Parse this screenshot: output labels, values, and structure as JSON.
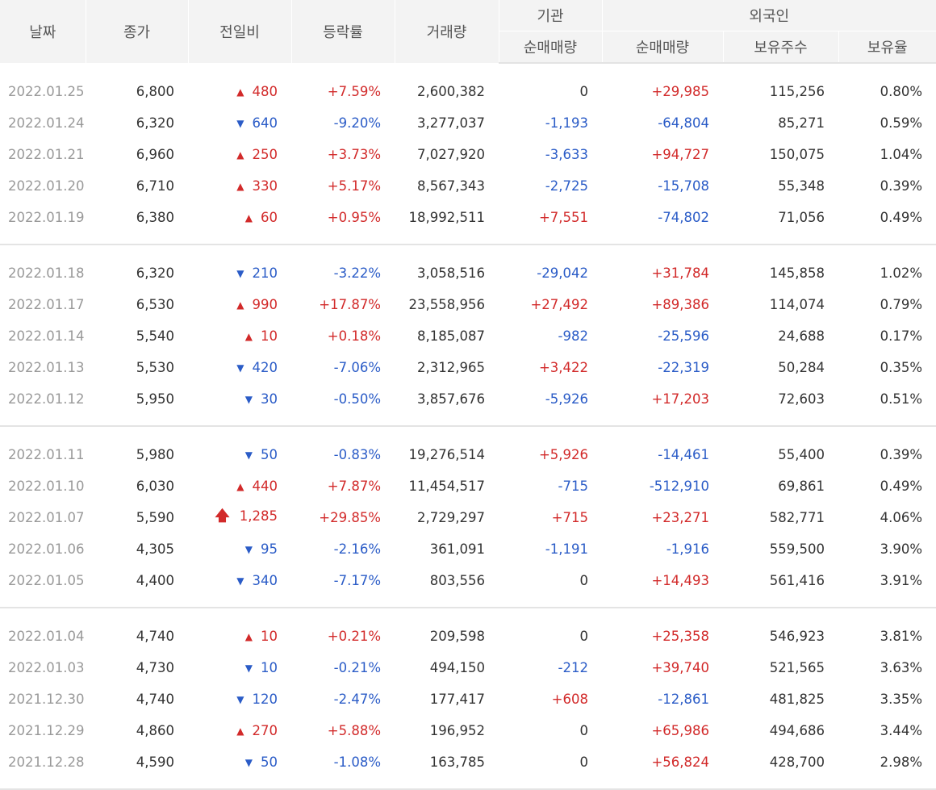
{
  "header": {
    "date": "날짜",
    "close": "종가",
    "change": "전일비",
    "rate": "등락률",
    "volume": "거래량",
    "institution_group": "기관",
    "institution_net": "순매매량",
    "foreign_group": "외국인",
    "foreign_net": "순매매량",
    "foreign_holdings": "보유주수",
    "foreign_ratio": "보유율"
  },
  "colors": {
    "up": "#d22a2a",
    "down": "#2b5cc7",
    "date": "#999999",
    "header_bg": "#f3f3f3"
  },
  "groups": [
    {
      "rows": [
        {
          "date": "2022.01.25",
          "close": "6,800",
          "dir": "up",
          "change": "480",
          "rate": "+7.59%",
          "volume": "2,600,382",
          "inst": "0",
          "foreign": "+29,985",
          "holdings": "115,256",
          "ratio": "0.80%"
        },
        {
          "date": "2022.01.24",
          "close": "6,320",
          "dir": "down",
          "change": "640",
          "rate": "-9.20%",
          "volume": "3,277,037",
          "inst": "-1,193",
          "foreign": "-64,804",
          "holdings": "85,271",
          "ratio": "0.59%"
        },
        {
          "date": "2022.01.21",
          "close": "6,960",
          "dir": "up",
          "change": "250",
          "rate": "+3.73%",
          "volume": "7,027,920",
          "inst": "-3,633",
          "foreign": "+94,727",
          "holdings": "150,075",
          "ratio": "1.04%"
        },
        {
          "date": "2022.01.20",
          "close": "6,710",
          "dir": "up",
          "change": "330",
          "rate": "+5.17%",
          "volume": "8,567,343",
          "inst": "-2,725",
          "foreign": "-15,708",
          "holdings": "55,348",
          "ratio": "0.39%"
        },
        {
          "date": "2022.01.19",
          "close": "6,380",
          "dir": "up",
          "change": "60",
          "rate": "+0.95%",
          "volume": "18,992,511",
          "inst": "+7,551",
          "foreign": "-74,802",
          "holdings": "71,056",
          "ratio": "0.49%"
        }
      ]
    },
    {
      "rows": [
        {
          "date": "2022.01.18",
          "close": "6,320",
          "dir": "down",
          "change": "210",
          "rate": "-3.22%",
          "volume": "3,058,516",
          "inst": "-29,042",
          "foreign": "+31,784",
          "holdings": "145,858",
          "ratio": "1.02%"
        },
        {
          "date": "2022.01.17",
          "close": "6,530",
          "dir": "up",
          "change": "990",
          "rate": "+17.87%",
          "volume": "23,558,956",
          "inst": "+27,492",
          "foreign": "+89,386",
          "holdings": "114,074",
          "ratio": "0.79%"
        },
        {
          "date": "2022.01.14",
          "close": "5,540",
          "dir": "up",
          "change": "10",
          "rate": "+0.18%",
          "volume": "8,185,087",
          "inst": "-982",
          "foreign": "-25,596",
          "holdings": "24,688",
          "ratio": "0.17%"
        },
        {
          "date": "2022.01.13",
          "close": "5,530",
          "dir": "down",
          "change": "420",
          "rate": "-7.06%",
          "volume": "2,312,965",
          "inst": "+3,422",
          "foreign": "-22,319",
          "holdings": "50,284",
          "ratio": "0.35%"
        },
        {
          "date": "2022.01.12",
          "close": "5,950",
          "dir": "down",
          "change": "30",
          "rate": "-0.50%",
          "volume": "3,857,676",
          "inst": "-5,926",
          "foreign": "+17,203",
          "holdings": "72,603",
          "ratio": "0.51%"
        }
      ]
    },
    {
      "rows": [
        {
          "date": "2022.01.11",
          "close": "5,980",
          "dir": "down",
          "change": "50",
          "rate": "-0.83%",
          "volume": "19,276,514",
          "inst": "+5,926",
          "foreign": "-14,461",
          "holdings": "55,400",
          "ratio": "0.39%"
        },
        {
          "date": "2022.01.10",
          "close": "6,030",
          "dir": "up",
          "change": "440",
          "rate": "+7.87%",
          "volume": "11,454,517",
          "inst": "-715",
          "foreign": "-512,910",
          "holdings": "69,861",
          "ratio": "0.49%"
        },
        {
          "date": "2022.01.07",
          "close": "5,590",
          "dir": "uplimit",
          "change": "1,285",
          "rate": "+29.85%",
          "volume": "2,729,297",
          "inst": "+715",
          "foreign": "+23,271",
          "holdings": "582,771",
          "ratio": "4.06%"
        },
        {
          "date": "2022.01.06",
          "close": "4,305",
          "dir": "down",
          "change": "95",
          "rate": "-2.16%",
          "volume": "361,091",
          "inst": "-1,191",
          "foreign": "-1,916",
          "holdings": "559,500",
          "ratio": "3.90%"
        },
        {
          "date": "2022.01.05",
          "close": "4,400",
          "dir": "down",
          "change": "340",
          "rate": "-7.17%",
          "volume": "803,556",
          "inst": "0",
          "foreign": "+14,493",
          "holdings": "561,416",
          "ratio": "3.91%"
        }
      ]
    },
    {
      "rows": [
        {
          "date": "2022.01.04",
          "close": "4,740",
          "dir": "up",
          "change": "10",
          "rate": "+0.21%",
          "volume": "209,598",
          "inst": "0",
          "foreign": "+25,358",
          "holdings": "546,923",
          "ratio": "3.81%"
        },
        {
          "date": "2022.01.03",
          "close": "4,730",
          "dir": "down",
          "change": "10",
          "rate": "-0.21%",
          "volume": "494,150",
          "inst": "-212",
          "foreign": "+39,740",
          "holdings": "521,565",
          "ratio": "3.63%"
        },
        {
          "date": "2021.12.30",
          "close": "4,740",
          "dir": "down",
          "change": "120",
          "rate": "-2.47%",
          "volume": "177,417",
          "inst": "+608",
          "foreign": "-12,861",
          "holdings": "481,825",
          "ratio": "3.35%"
        },
        {
          "date": "2021.12.29",
          "close": "4,860",
          "dir": "up",
          "change": "270",
          "rate": "+5.88%",
          "volume": "196,952",
          "inst": "0",
          "foreign": "+65,986",
          "holdings": "494,686",
          "ratio": "3.44%"
        },
        {
          "date": "2021.12.28",
          "close": "4,590",
          "dir": "down",
          "change": "50",
          "rate": "-1.08%",
          "volume": "163,785",
          "inst": "0",
          "foreign": "+56,824",
          "holdings": "428,700",
          "ratio": "2.98%"
        }
      ]
    }
  ]
}
